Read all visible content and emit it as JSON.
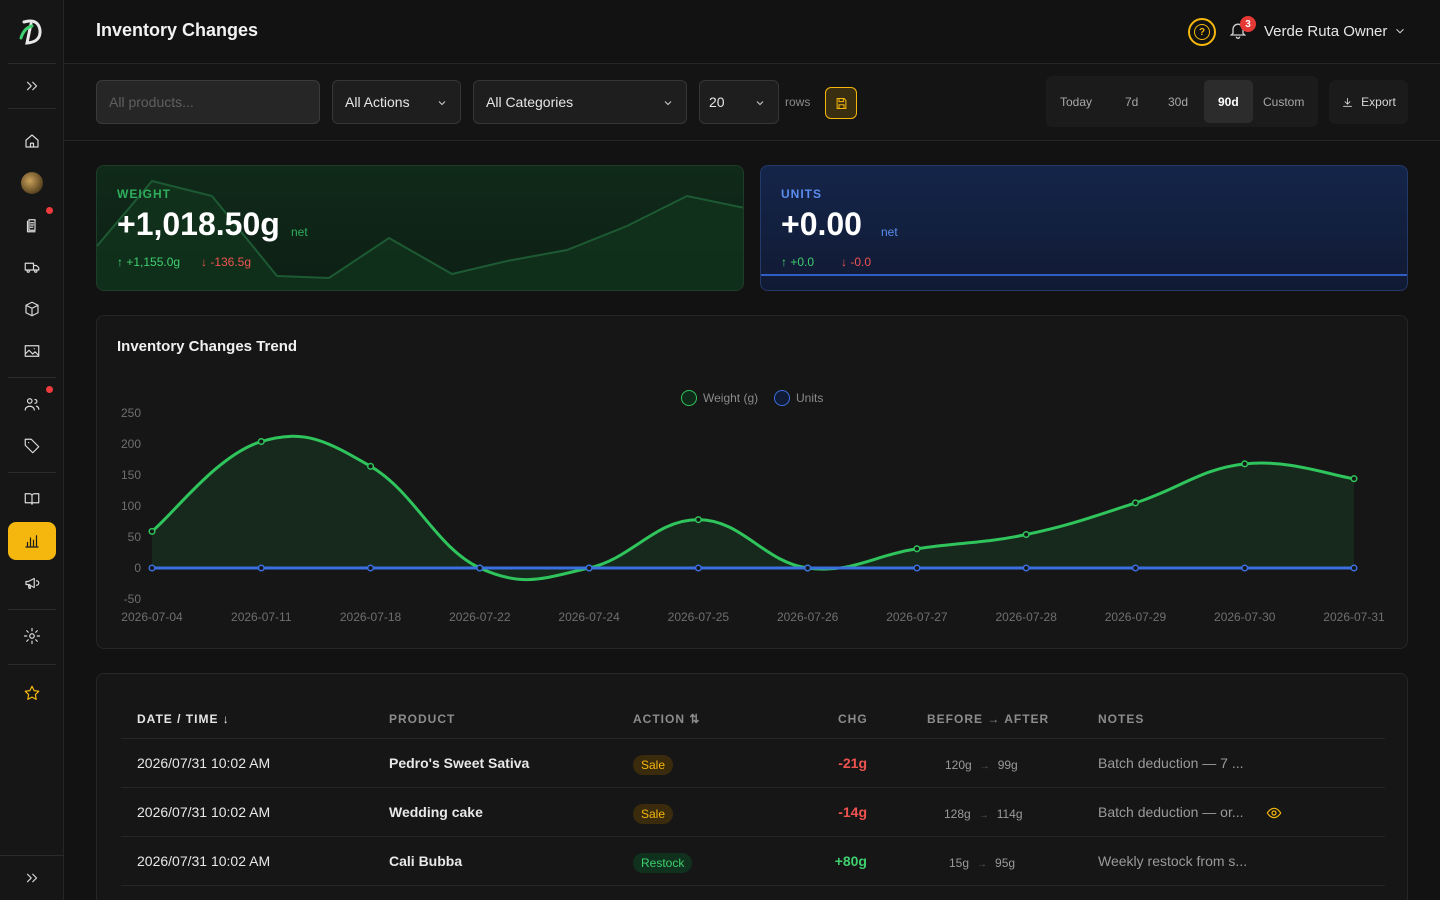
{
  "header": {
    "title": "Inventory Changes",
    "notifications_count": "3",
    "user_name": "Verde Ruta Owner"
  },
  "toolbar": {
    "search_placeholder": "All products...",
    "action_filter": "All Actions",
    "category_filter": "All Categories",
    "rows_value": "20",
    "rows_label": "rows",
    "ranges": [
      "Today",
      "7d",
      "30d",
      "90d",
      "Custom"
    ],
    "active_range": "90d",
    "export_label": "Export"
  },
  "kpis": {
    "weight": {
      "label": "WEIGHT",
      "value": "+1,018.50g",
      "suffix": "net",
      "up": "↑ +1,155.0g",
      "down": "↓ -136.5g",
      "color": "#2fae5d"
    },
    "units": {
      "label": "UNITS",
      "value": "+0.00",
      "suffix": "net",
      "up": "↑ +0.0",
      "down": "↓ -0.0",
      "color": "#5b8df0"
    }
  },
  "chart_data": {
    "type": "line",
    "title": "Inventory Changes Trend",
    "categories": [
      "2026-07-04",
      "2026-07-11",
      "2026-07-18",
      "2026-07-22",
      "2026-07-24",
      "2026-07-25",
      "2026-07-26",
      "2026-07-27",
      "2026-07-28",
      "2026-07-29",
      "2026-07-30",
      "2026-07-31"
    ],
    "series": [
      {
        "name": "Weight (g)",
        "color": "#2fc45c",
        "values": [
          59,
          204,
          164,
          0,
          0,
          78,
          0,
          31,
          54,
          105,
          168,
          144
        ]
      },
      {
        "name": "Units",
        "color": "#3b6fe0",
        "values": [
          0,
          0,
          0,
          0,
          0,
          0,
          0,
          0,
          0,
          0,
          0,
          0
        ]
      }
    ],
    "y_ticks": [
      250,
      200,
      150,
      100,
      50,
      0,
      -50
    ],
    "ylim": [
      -50,
      250
    ],
    "legend_position": "top-center",
    "grid": false,
    "area_fill": true
  },
  "table": {
    "headers": {
      "datetime": "DATE / TIME ↓",
      "product": "PRODUCT",
      "action": "ACTION ⇅",
      "chg": "CHG",
      "before_after": "BEFORE → AFTER",
      "notes": "NOTES"
    },
    "rows": [
      {
        "datetime": "2026/07/31 10:02 AM",
        "product": "Pedro's Sweet Sativa",
        "action": "Sale",
        "chg": "-21g",
        "before": "120g",
        "after": "99g",
        "notes": "Batch deduction — 7 ..."
      },
      {
        "datetime": "2026/07/31 10:02 AM",
        "product": "Wedding cake",
        "action": "Sale",
        "chg": "-14g",
        "before": "128g",
        "after": "114g",
        "notes": "Batch deduction — or..."
      },
      {
        "datetime": "2026/07/31 10:02 AM",
        "product": "Cali Bubba",
        "action": "Restock",
        "chg": "+80g",
        "before": "15g",
        "after": "95g",
        "notes": "Weekly restock from s..."
      }
    ],
    "arrow": "→"
  },
  "colors": {
    "accent": "#f5b70d",
    "danger": "#ef5350",
    "success": "#3ecf6e",
    "info": "#5b8df0"
  }
}
